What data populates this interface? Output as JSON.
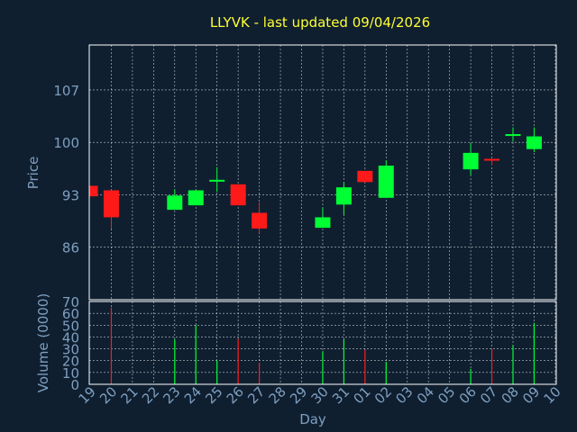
{
  "title": "LLYVK - last updated 09/04/2026",
  "colors": {
    "background": "#0f1f30",
    "plot_background": "#0f1f30",
    "title": "#ffff33",
    "axis_text": "#7f9fbf",
    "frame": "#ffffff",
    "grid": "#ffffff",
    "up": "#00ff33",
    "down": "#ff1a1a"
  },
  "chart_data": [
    {
      "type": "candlestick",
      "ylabel": "Price",
      "y_ticks": [
        86,
        93,
        100,
        107
      ],
      "ylim": [
        79,
        113
      ],
      "x_tick_labels": [
        "19",
        "20",
        "21",
        "22",
        "23",
        "24",
        "25",
        "26",
        "27",
        "28",
        "29",
        "30",
        "31",
        "01",
        "02",
        "03",
        "04",
        "05",
        "06",
        "07",
        "08",
        "09",
        "10"
      ],
      "grid": true,
      "candles": [
        {
          "day": "19",
          "open": 94.2,
          "high": 94.2,
          "low": 92.8,
          "close": 92.8
        },
        {
          "day": "20",
          "open": 93.6,
          "high": 93.6,
          "low": 88.5,
          "close": 90.0
        },
        {
          "day": "23",
          "open": 91.0,
          "high": 93.7,
          "low": 91.0,
          "close": 92.9
        },
        {
          "day": "24",
          "open": 91.6,
          "high": 93.7,
          "low": 91.6,
          "close": 93.6
        },
        {
          "day": "25",
          "open": 95.0,
          "high": 96.7,
          "low": 93.4,
          "close": 95.0
        },
        {
          "day": "26",
          "open": 94.4,
          "high": 94.4,
          "low": 91.6,
          "close": 91.6
        },
        {
          "day": "27",
          "open": 90.6,
          "high": 92.0,
          "low": 87.9,
          "close": 88.5
        },
        {
          "day": "30",
          "open": 88.6,
          "high": 91.3,
          "low": 88.6,
          "close": 90.0
        },
        {
          "day": "31",
          "open": 91.7,
          "high": 94.7,
          "low": 90.3,
          "close": 94.0
        },
        {
          "day": "01",
          "open": 96.2,
          "high": 96.2,
          "low": 94.7,
          "close": 94.7
        },
        {
          "day": "02",
          "open": 92.6,
          "high": 97.6,
          "low": 92.6,
          "close": 96.9
        },
        {
          "day": "06",
          "open": 96.4,
          "high": 99.9,
          "low": 95.6,
          "close": 98.6
        },
        {
          "day": "07",
          "open": 97.8,
          "high": 97.8,
          "low": 96.9,
          "close": 97.7
        },
        {
          "day": "08",
          "open": 101.0,
          "high": 102.0,
          "low": 100.1,
          "close": 101.1
        },
        {
          "day": "09",
          "open": 99.1,
          "high": 102.0,
          "low": 98.7,
          "close": 100.8
        }
      ]
    },
    {
      "type": "bar",
      "ylabel": "Volume (0000)",
      "xlabel": "Day",
      "y_ticks": [
        0,
        10,
        20,
        30,
        40,
        50,
        60,
        70
      ],
      "ylim": [
        0,
        70
      ],
      "x_tick_labels": [
        "19",
        "20",
        "21",
        "22",
        "23",
        "24",
        "25",
        "26",
        "27",
        "28",
        "29",
        "30",
        "31",
        "01",
        "02",
        "03",
        "04",
        "05",
        "06",
        "07",
        "08",
        "09",
        "10"
      ],
      "grid": true,
      "bars": [
        {
          "day": "20",
          "value": 65,
          "direction": "down"
        },
        {
          "day": "23",
          "value": 38,
          "direction": "up"
        },
        {
          "day": "24",
          "value": 50,
          "direction": "up"
        },
        {
          "day": "25",
          "value": 20,
          "direction": "up"
        },
        {
          "day": "26",
          "value": 38,
          "direction": "down"
        },
        {
          "day": "27",
          "value": 18,
          "direction": "down"
        },
        {
          "day": "30",
          "value": 28,
          "direction": "up"
        },
        {
          "day": "31",
          "value": 38,
          "direction": "up"
        },
        {
          "day": "01",
          "value": 29,
          "direction": "down"
        },
        {
          "day": "02",
          "value": 19,
          "direction": "up"
        },
        {
          "day": "06",
          "value": 13,
          "direction": "up"
        },
        {
          "day": "07",
          "value": 30,
          "direction": "down"
        },
        {
          "day": "08",
          "value": 33,
          "direction": "up"
        },
        {
          "day": "09",
          "value": 52,
          "direction": "up"
        }
      ]
    }
  ]
}
